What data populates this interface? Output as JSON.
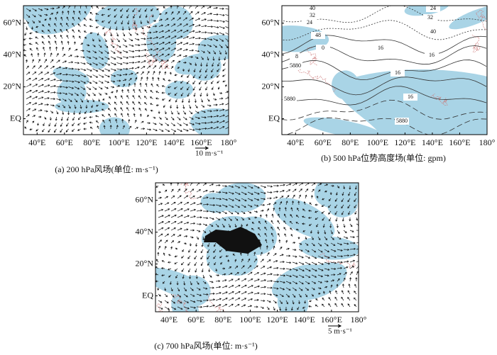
{
  "panels": [
    {
      "caption": "(a) 200 hPa风场(单位: m·s⁻¹)",
      "scale_label": "10 m·s⁻¹",
      "x_labels": [
        "40°E",
        "60°E",
        "80°E",
        "100°E",
        "120°E",
        "140°E",
        "160°E",
        "180°"
      ],
      "y_labels": [
        "60°N",
        "40°N",
        "20°N",
        "EQ"
      ]
    },
    {
      "caption": "(b) 500 hPa位势高度场(单位: gpm)",
      "x_labels": [
        "40°E",
        "60°E",
        "80°E",
        "100°E",
        "120°E",
        "140°E",
        "160°E",
        "180°"
      ],
      "y_labels": [
        "60°N",
        "40°N",
        "20°N",
        "EQ"
      ],
      "contour_labels": [
        "40",
        "32",
        "24",
        "48",
        "0",
        "8",
        "16",
        "24",
        "32",
        "40",
        "16",
        "5880",
        "16",
        "16",
        "5880",
        "5880"
      ]
    },
    {
      "caption": "(c) 700 hPa风场(单位: m·s⁻¹)",
      "scale_label": "5 m·s⁻¹",
      "x_labels": [
        "40°E",
        "60°E",
        "80°E",
        "100°E",
        "120°E",
        "140°E",
        "160°E",
        "180°"
      ],
      "y_labels": [
        "60°N",
        "40°N",
        "20°N",
        "EQ"
      ]
    }
  ]
}
